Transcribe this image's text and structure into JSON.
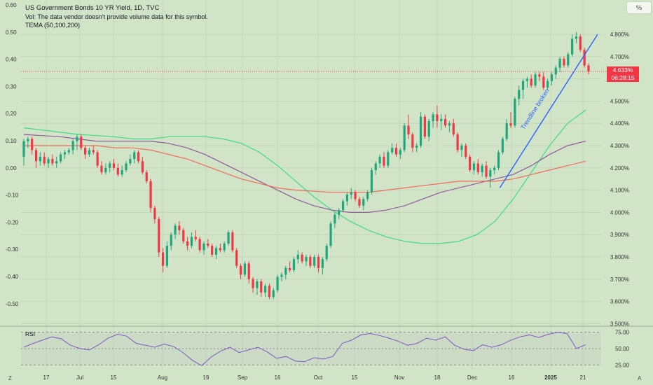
{
  "legend": {
    "title": "US Government Bonds 10 YR Yield, 1D, TVC",
    "vol_note": "Vol: The data vendor doesn't provide volume data for this symbol.",
    "indicator": "TEMA (50,100,200)"
  },
  "unit_label": "%",
  "price_tag": {
    "price": "4.633%",
    "countdown": "06:28:15"
  },
  "rsi": {
    "label": "RSI",
    "levels": [
      "75.00",
      "50.00",
      "25.00"
    ]
  },
  "annotation": {
    "text": "Trendline broken"
  },
  "corner_left": "Z",
  "corner_right": "A",
  "colors": {
    "background": "#d2e4c7",
    "up": "#1fa67a",
    "down": "#f23645",
    "tema_fast": "#3ddc84",
    "tema_mid": "#8e5a9a",
    "tema_slow": "#ef6c5a",
    "trendline": "#2962ff",
    "rsi_line": "#7e57c2"
  },
  "chart_data": {
    "type": "candlestick",
    "right_axis": {
      "labels": [
        "4.800%",
        "4.700%",
        "4.600%",
        "4.500%",
        "4.400%",
        "4.300%",
        "4.200%",
        "4.100%",
        "4.000%",
        "3.900%",
        "3.800%",
        "3.700%",
        "3.600%",
        "3.500%"
      ],
      "range": [
        3.48,
        4.83
      ]
    },
    "left_axis": {
      "labels": [
        "0.60",
        "0.50",
        "0.40",
        "0.30",
        "0.20",
        "0.10",
        "0.00",
        "-0.10",
        "-0.20",
        "-0.30",
        "-0.40",
        "-0.50"
      ]
    },
    "x_ticks": [
      "17",
      "Jul",
      "15",
      "Aug",
      "19",
      "Sep",
      "16",
      "Oct",
      "15",
      "Nov",
      "18",
      "Dec",
      "16",
      "2025",
      "21"
    ],
    "current_price": 4.633,
    "candles": [
      {
        "o": 4.25,
        "h": 4.33,
        "l": 4.21,
        "c": 4.32
      },
      {
        "o": 4.32,
        "h": 4.34,
        "l": 4.29,
        "c": 4.33
      },
      {
        "o": 4.33,
        "h": 4.34,
        "l": 4.26,
        "c": 4.28
      },
      {
        "o": 4.28,
        "h": 4.29,
        "l": 4.2,
        "c": 4.23
      },
      {
        "o": 4.23,
        "h": 4.27,
        "l": 4.21,
        "c": 4.25
      },
      {
        "o": 4.25,
        "h": 4.27,
        "l": 4.21,
        "c": 4.22
      },
      {
        "o": 4.22,
        "h": 4.25,
        "l": 4.2,
        "c": 4.24
      },
      {
        "o": 4.24,
        "h": 4.26,
        "l": 4.21,
        "c": 4.22
      },
      {
        "o": 4.22,
        "h": 4.25,
        "l": 4.2,
        "c": 4.23
      },
      {
        "o": 4.23,
        "h": 4.27,
        "l": 4.22,
        "c": 4.26
      },
      {
        "o": 4.26,
        "h": 4.28,
        "l": 4.24,
        "c": 4.27
      },
      {
        "o": 4.27,
        "h": 4.29,
        "l": 4.26,
        "c": 4.28
      },
      {
        "o": 4.28,
        "h": 4.33,
        "l": 4.26,
        "c": 4.32
      },
      {
        "o": 4.32,
        "h": 4.35,
        "l": 4.28,
        "c": 4.34
      },
      {
        "o": 4.34,
        "h": 4.35,
        "l": 4.28,
        "c": 4.29
      },
      {
        "o": 4.29,
        "h": 4.3,
        "l": 4.24,
        "c": 4.26
      },
      {
        "o": 4.26,
        "h": 4.29,
        "l": 4.25,
        "c": 4.28
      },
      {
        "o": 4.28,
        "h": 4.3,
        "l": 4.26,
        "c": 4.27
      },
      {
        "o": 4.27,
        "h": 4.28,
        "l": 4.2,
        "c": 4.21
      },
      {
        "o": 4.21,
        "h": 4.23,
        "l": 4.17,
        "c": 4.18
      },
      {
        "o": 4.18,
        "h": 4.22,
        "l": 4.17,
        "c": 4.2
      },
      {
        "o": 4.2,
        "h": 4.23,
        "l": 4.18,
        "c": 4.22
      },
      {
        "o": 4.22,
        "h": 4.24,
        "l": 4.19,
        "c": 4.2
      },
      {
        "o": 4.2,
        "h": 4.22,
        "l": 4.16,
        "c": 4.17
      },
      {
        "o": 4.17,
        "h": 4.21,
        "l": 4.16,
        "c": 4.19
      },
      {
        "o": 4.19,
        "h": 4.23,
        "l": 4.18,
        "c": 4.22
      },
      {
        "o": 4.22,
        "h": 4.26,
        "l": 4.21,
        "c": 4.24
      },
      {
        "o": 4.24,
        "h": 4.28,
        "l": 4.22,
        "c": 4.27
      },
      {
        "o": 4.27,
        "h": 4.28,
        "l": 4.22,
        "c": 4.23
      },
      {
        "o": 4.23,
        "h": 4.25,
        "l": 4.17,
        "c": 4.18
      },
      {
        "o": 4.18,
        "h": 4.19,
        "l": 4.13,
        "c": 4.14
      },
      {
        "o": 4.14,
        "h": 4.15,
        "l": 4.0,
        "c": 4.02
      },
      {
        "o": 4.02,
        "h": 4.03,
        "l": 3.95,
        "c": 3.97
      },
      {
        "o": 3.97,
        "h": 3.98,
        "l": 3.8,
        "c": 3.82
      },
      {
        "o": 3.82,
        "h": 3.84,
        "l": 3.73,
        "c": 3.76
      },
      {
        "o": 3.76,
        "h": 3.87,
        "l": 3.75,
        "c": 3.85
      },
      {
        "o": 3.85,
        "h": 3.91,
        "l": 3.83,
        "c": 3.9
      },
      {
        "o": 3.9,
        "h": 3.95,
        "l": 3.88,
        "c": 3.94
      },
      {
        "o": 3.94,
        "h": 3.96,
        "l": 3.9,
        "c": 3.92
      },
      {
        "o": 3.92,
        "h": 3.93,
        "l": 3.86,
        "c": 3.87
      },
      {
        "o": 3.87,
        "h": 3.89,
        "l": 3.83,
        "c": 3.85
      },
      {
        "o": 3.85,
        "h": 3.91,
        "l": 3.84,
        "c": 3.89
      },
      {
        "o": 3.89,
        "h": 3.92,
        "l": 3.87,
        "c": 3.88
      },
      {
        "o": 3.88,
        "h": 3.89,
        "l": 3.82,
        "c": 3.83
      },
      {
        "o": 3.83,
        "h": 3.87,
        "l": 3.81,
        "c": 3.86
      },
      {
        "o": 3.86,
        "h": 3.88,
        "l": 3.84,
        "c": 3.85
      },
      {
        "o": 3.85,
        "h": 3.86,
        "l": 3.8,
        "c": 3.81
      },
      {
        "o": 3.81,
        "h": 3.85,
        "l": 3.79,
        "c": 3.84
      },
      {
        "o": 3.84,
        "h": 3.86,
        "l": 3.82,
        "c": 3.83
      },
      {
        "o": 3.83,
        "h": 3.87,
        "l": 3.82,
        "c": 3.86
      },
      {
        "o": 3.86,
        "h": 3.92,
        "l": 3.85,
        "c": 3.91
      },
      {
        "o": 3.91,
        "h": 3.92,
        "l": 3.82,
        "c": 3.83
      },
      {
        "o": 3.83,
        "h": 3.84,
        "l": 3.75,
        "c": 3.76
      },
      {
        "o": 3.76,
        "h": 3.77,
        "l": 3.7,
        "c": 3.72
      },
      {
        "o": 3.72,
        "h": 3.78,
        "l": 3.71,
        "c": 3.77
      },
      {
        "o": 3.77,
        "h": 3.78,
        "l": 3.68,
        "c": 3.7
      },
      {
        "o": 3.7,
        "h": 3.71,
        "l": 3.64,
        "c": 3.66
      },
      {
        "o": 3.66,
        "h": 3.7,
        "l": 3.63,
        "c": 3.69
      },
      {
        "o": 3.69,
        "h": 3.7,
        "l": 3.62,
        "c": 3.64
      },
      {
        "o": 3.64,
        "h": 3.68,
        "l": 3.62,
        "c": 3.67
      },
      {
        "o": 3.67,
        "h": 3.68,
        "l": 3.61,
        "c": 3.62
      },
      {
        "o": 3.62,
        "h": 3.66,
        "l": 3.61,
        "c": 3.65
      },
      {
        "o": 3.65,
        "h": 3.72,
        "l": 3.64,
        "c": 3.71
      },
      {
        "o": 3.71,
        "h": 3.73,
        "l": 3.69,
        "c": 3.72
      },
      {
        "o": 3.72,
        "h": 3.76,
        "l": 3.7,
        "c": 3.75
      },
      {
        "o": 3.75,
        "h": 3.78,
        "l": 3.73,
        "c": 3.74
      },
      {
        "o": 3.74,
        "h": 3.8,
        "l": 3.73,
        "c": 3.79
      },
      {
        "o": 3.79,
        "h": 3.83,
        "l": 3.77,
        "c": 3.81
      },
      {
        "o": 3.81,
        "h": 3.82,
        "l": 3.77,
        "c": 3.78
      },
      {
        "o": 3.78,
        "h": 3.81,
        "l": 3.76,
        "c": 3.8
      },
      {
        "o": 3.8,
        "h": 3.81,
        "l": 3.75,
        "c": 3.76
      },
      {
        "o": 3.76,
        "h": 3.81,
        "l": 3.75,
        "c": 3.8
      },
      {
        "o": 3.8,
        "h": 3.81,
        "l": 3.73,
        "c": 3.75
      },
      {
        "o": 3.75,
        "h": 3.8,
        "l": 3.72,
        "c": 3.79
      },
      {
        "o": 3.79,
        "h": 3.86,
        "l": 3.78,
        "c": 3.85
      },
      {
        "o": 3.85,
        "h": 3.96,
        "l": 3.84,
        "c": 3.95
      },
      {
        "o": 3.95,
        "h": 4.0,
        "l": 3.93,
        "c": 3.99
      },
      {
        "o": 3.99,
        "h": 4.02,
        "l": 3.97,
        "c": 4.01
      },
      {
        "o": 4.01,
        "h": 4.06,
        "l": 4.0,
        "c": 4.05
      },
      {
        "o": 4.05,
        "h": 4.09,
        "l": 4.03,
        "c": 4.08
      },
      {
        "o": 4.08,
        "h": 4.11,
        "l": 4.06,
        "c": 4.09
      },
      {
        "o": 4.09,
        "h": 4.1,
        "l": 4.05,
        "c": 4.06
      },
      {
        "o": 4.06,
        "h": 4.07,
        "l": 4.02,
        "c": 4.03
      },
      {
        "o": 4.03,
        "h": 4.07,
        "l": 4.01,
        "c": 4.06
      },
      {
        "o": 4.06,
        "h": 4.1,
        "l": 4.05,
        "c": 4.09
      },
      {
        "o": 4.09,
        "h": 4.2,
        "l": 4.08,
        "c": 4.19
      },
      {
        "o": 4.19,
        "h": 4.23,
        "l": 4.17,
        "c": 4.22
      },
      {
        "o": 4.22,
        "h": 4.26,
        "l": 4.2,
        "c": 4.25
      },
      {
        "o": 4.25,
        "h": 4.27,
        "l": 4.2,
        "c": 4.21
      },
      {
        "o": 4.21,
        "h": 4.28,
        "l": 4.2,
        "c": 4.27
      },
      {
        "o": 4.27,
        "h": 4.31,
        "l": 4.26,
        "c": 4.29
      },
      {
        "o": 4.29,
        "h": 4.31,
        "l": 4.25,
        "c": 4.26
      },
      {
        "o": 4.26,
        "h": 4.29,
        "l": 4.24,
        "c": 4.28
      },
      {
        "o": 4.28,
        "h": 4.4,
        "l": 4.27,
        "c": 4.39
      },
      {
        "o": 4.39,
        "h": 4.44,
        "l": 4.33,
        "c": 4.35
      },
      {
        "o": 4.35,
        "h": 4.36,
        "l": 4.27,
        "c": 4.29
      },
      {
        "o": 4.29,
        "h": 4.31,
        "l": 4.27,
        "c": 4.3
      },
      {
        "o": 4.3,
        "h": 4.45,
        "l": 4.29,
        "c": 4.43
      },
      {
        "o": 4.43,
        "h": 4.44,
        "l": 4.33,
        "c": 4.34
      },
      {
        "o": 4.34,
        "h": 4.42,
        "l": 4.32,
        "c": 4.41
      },
      {
        "o": 4.41,
        "h": 4.45,
        "l": 4.38,
        "c": 4.44
      },
      {
        "o": 4.44,
        "h": 4.48,
        "l": 4.38,
        "c": 4.41
      },
      {
        "o": 4.41,
        "h": 4.44,
        "l": 4.37,
        "c": 4.42
      },
      {
        "o": 4.42,
        "h": 4.44,
        "l": 4.38,
        "c": 4.39
      },
      {
        "o": 4.39,
        "h": 4.41,
        "l": 4.36,
        "c": 4.4
      },
      {
        "o": 4.4,
        "h": 4.42,
        "l": 4.34,
        "c": 4.35
      },
      {
        "o": 4.35,
        "h": 4.36,
        "l": 4.27,
        "c": 4.28
      },
      {
        "o": 4.28,
        "h": 4.31,
        "l": 4.25,
        "c": 4.3
      },
      {
        "o": 4.3,
        "h": 4.31,
        "l": 4.24,
        "c": 4.25
      },
      {
        "o": 4.25,
        "h": 4.26,
        "l": 4.18,
        "c": 4.19
      },
      {
        "o": 4.19,
        "h": 4.23,
        "l": 4.17,
        "c": 4.22
      },
      {
        "o": 4.22,
        "h": 4.24,
        "l": 4.17,
        "c": 4.18
      },
      {
        "o": 4.18,
        "h": 4.22,
        "l": 4.16,
        "c": 4.21
      },
      {
        "o": 4.21,
        "h": 4.23,
        "l": 4.15,
        "c": 4.16
      },
      {
        "o": 4.16,
        "h": 4.2,
        "l": 4.11,
        "c": 4.19
      },
      {
        "o": 4.19,
        "h": 4.21,
        "l": 4.17,
        "c": 4.2
      },
      {
        "o": 4.2,
        "h": 4.28,
        "l": 4.19,
        "c": 4.27
      },
      {
        "o": 4.27,
        "h": 4.34,
        "l": 4.26,
        "c": 4.33
      },
      {
        "o": 4.33,
        "h": 4.42,
        "l": 4.32,
        "c": 4.4
      },
      {
        "o": 4.4,
        "h": 4.45,
        "l": 4.38,
        "c": 4.39
      },
      {
        "o": 4.39,
        "h": 4.52,
        "l": 4.38,
        "c": 4.51
      },
      {
        "o": 4.51,
        "h": 4.57,
        "l": 4.48,
        "c": 4.55
      },
      {
        "o": 4.55,
        "h": 4.6,
        "l": 4.51,
        "c": 4.59
      },
      {
        "o": 4.59,
        "h": 4.61,
        "l": 4.56,
        "c": 4.6
      },
      {
        "o": 4.6,
        "h": 4.62,
        "l": 4.56,
        "c": 4.57
      },
      {
        "o": 4.57,
        "h": 4.63,
        "l": 4.56,
        "c": 4.62
      },
      {
        "o": 4.62,
        "h": 4.63,
        "l": 4.59,
        "c": 4.61
      },
      {
        "o": 4.61,
        "h": 4.63,
        "l": 4.55,
        "c": 4.56
      },
      {
        "o": 4.56,
        "h": 4.6,
        "l": 4.55,
        "c": 4.59
      },
      {
        "o": 4.59,
        "h": 4.63,
        "l": 4.57,
        "c": 4.62
      },
      {
        "o": 4.62,
        "h": 4.66,
        "l": 4.6,
        "c": 4.65
      },
      {
        "o": 4.65,
        "h": 4.7,
        "l": 4.63,
        "c": 4.69
      },
      {
        "o": 4.69,
        "h": 4.7,
        "l": 4.65,
        "c": 4.66
      },
      {
        "o": 4.66,
        "h": 4.72,
        "l": 4.65,
        "c": 4.71
      },
      {
        "o": 4.71,
        "h": 4.8,
        "l": 4.7,
        "c": 4.78
      },
      {
        "o": 4.78,
        "h": 4.81,
        "l": 4.76,
        "c": 4.79
      },
      {
        "o": 4.79,
        "h": 4.8,
        "l": 4.72,
        "c": 4.73
      },
      {
        "o": 4.73,
        "h": 4.74,
        "l": 4.65,
        "c": 4.66
      },
      {
        "o": 4.66,
        "h": 4.67,
        "l": 4.62,
        "c": 4.633
      }
    ],
    "series": [
      {
        "name": "TEMA 50",
        "values": [
          4.38,
          4.37,
          4.36,
          4.35,
          4.345,
          4.34,
          4.33,
          4.33,
          4.34,
          4.34,
          4.34,
          4.33,
          4.31,
          4.27,
          4.21,
          4.14,
          4.07,
          4.01,
          3.96,
          3.92,
          3.89,
          3.87,
          3.86,
          3.86,
          3.87,
          3.9,
          3.96,
          4.06,
          4.18,
          4.3,
          4.4,
          4.46
        ]
      },
      {
        "name": "TEMA 100",
        "values": [
          4.35,
          4.345,
          4.34,
          4.33,
          4.32,
          4.32,
          4.32,
          4.32,
          4.31,
          4.29,
          4.26,
          4.22,
          4.18,
          4.14,
          4.1,
          4.06,
          4.03,
          4.01,
          4.0,
          4.0,
          4.01,
          4.03,
          4.06,
          4.09,
          4.11,
          4.13,
          4.15,
          4.17,
          4.21,
          4.26,
          4.3,
          4.32
        ]
      },
      {
        "name": "TEMA 200",
        "values": [
          4.3,
          4.3,
          4.3,
          4.3,
          4.3,
          4.29,
          4.29,
          4.28,
          4.26,
          4.24,
          4.21,
          4.18,
          4.15,
          4.13,
          4.11,
          4.1,
          4.095,
          4.09,
          4.09,
          4.09,
          4.1,
          4.11,
          4.12,
          4.13,
          4.14,
          4.14,
          4.14,
          4.15,
          4.17,
          4.19,
          4.21,
          4.23
        ]
      }
    ],
    "rsi": {
      "values": [
        52,
        58,
        63,
        68,
        65,
        55,
        50,
        48,
        56,
        66,
        72,
        69,
        58,
        55,
        52,
        57,
        53,
        44,
        32,
        24,
        37,
        46,
        52,
        44,
        48,
        52,
        45,
        35,
        38,
        31,
        30,
        36,
        34,
        38,
        58,
        63,
        71,
        73,
        70,
        66,
        61,
        55,
        58,
        66,
        63,
        68,
        55,
        49,
        47,
        56,
        52,
        56,
        63,
        68,
        71,
        67,
        72,
        75,
        73,
        50,
        56
      ]
    }
  }
}
